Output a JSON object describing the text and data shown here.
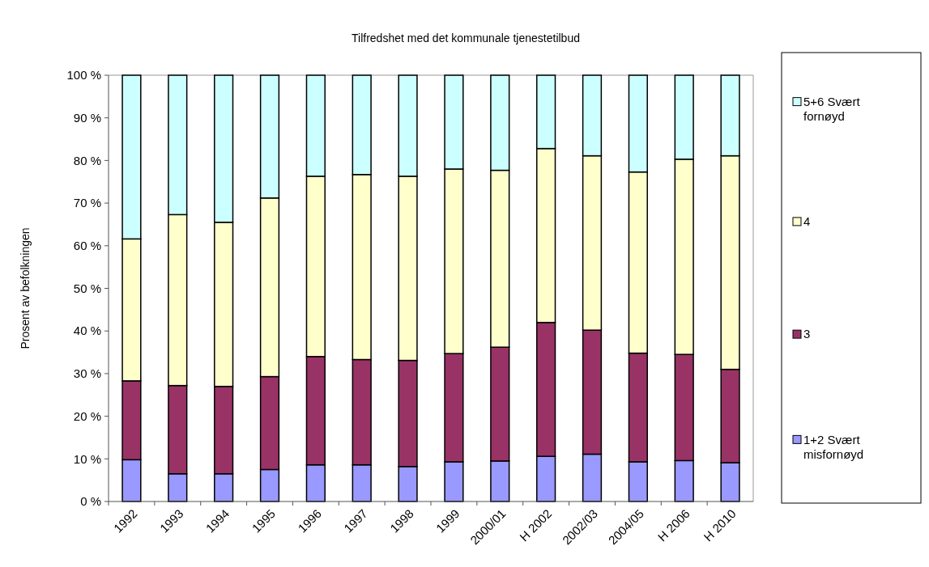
{
  "chart_data": {
    "type": "bar",
    "stacked": true,
    "title": "Tilfredshet med det kommunale tjenestetilbud",
    "ylabel": "Prosent av befolkningen",
    "categories": [
      "1992",
      "1993",
      "1994",
      "1995",
      "1996",
      "1997",
      "1998",
      "1999",
      "2000/01",
      "H 2002",
      "2002/03",
      "2004/05",
      "H 2006",
      "H 2010"
    ],
    "series": [
      {
        "name": "1+2 Svært misfornøyd",
        "color": "#9999ff",
        "values": [
          9.8,
          6.5,
          6.5,
          7.5,
          8.6,
          8.6,
          8.2,
          9.3,
          9.5,
          10.6,
          11.1,
          9.3,
          9.6,
          9.1
        ]
      },
      {
        "name": "3",
        "color": "#993366",
        "values": [
          18.5,
          20.7,
          20.5,
          21.8,
          25.4,
          24.7,
          24.9,
          25.4,
          26.7,
          31.4,
          29.1,
          25.5,
          24.9,
          21.9
        ]
      },
      {
        "name": "4",
        "color": "#ffffcc",
        "values": [
          33.3,
          40.1,
          38.5,
          41.9,
          42.3,
          43.4,
          43.2,
          43.3,
          41.5,
          40.8,
          40.9,
          42.5,
          45.8,
          50.1
        ]
      },
      {
        "name": "5+6 Svært fornøyd",
        "color": "#ccffff",
        "values": [
          38.4,
          32.7,
          34.5,
          28.8,
          23.7,
          23.3,
          23.7,
          22.0,
          22.3,
          17.2,
          18.9,
          22.7,
          19.7,
          18.9
        ]
      }
    ],
    "ylim": [
      0,
      100
    ],
    "yticks": [
      {
        "value": 0,
        "label": "0 %"
      },
      {
        "value": 10,
        "label": "10 %"
      },
      {
        "value": 20,
        "label": "20 %"
      },
      {
        "value": 30,
        "label": "30 %"
      },
      {
        "value": 40,
        "label": "40 %"
      },
      {
        "value": 50,
        "label": "50 %"
      },
      {
        "value": 60,
        "label": "60 %"
      },
      {
        "value": 70,
        "label": "70 %"
      },
      {
        "value": 80,
        "label": "80 %"
      },
      {
        "value": 90,
        "label": "90 %"
      },
      {
        "value": 100,
        "label": "100 %"
      }
    ],
    "grid": false,
    "legend": "right"
  }
}
